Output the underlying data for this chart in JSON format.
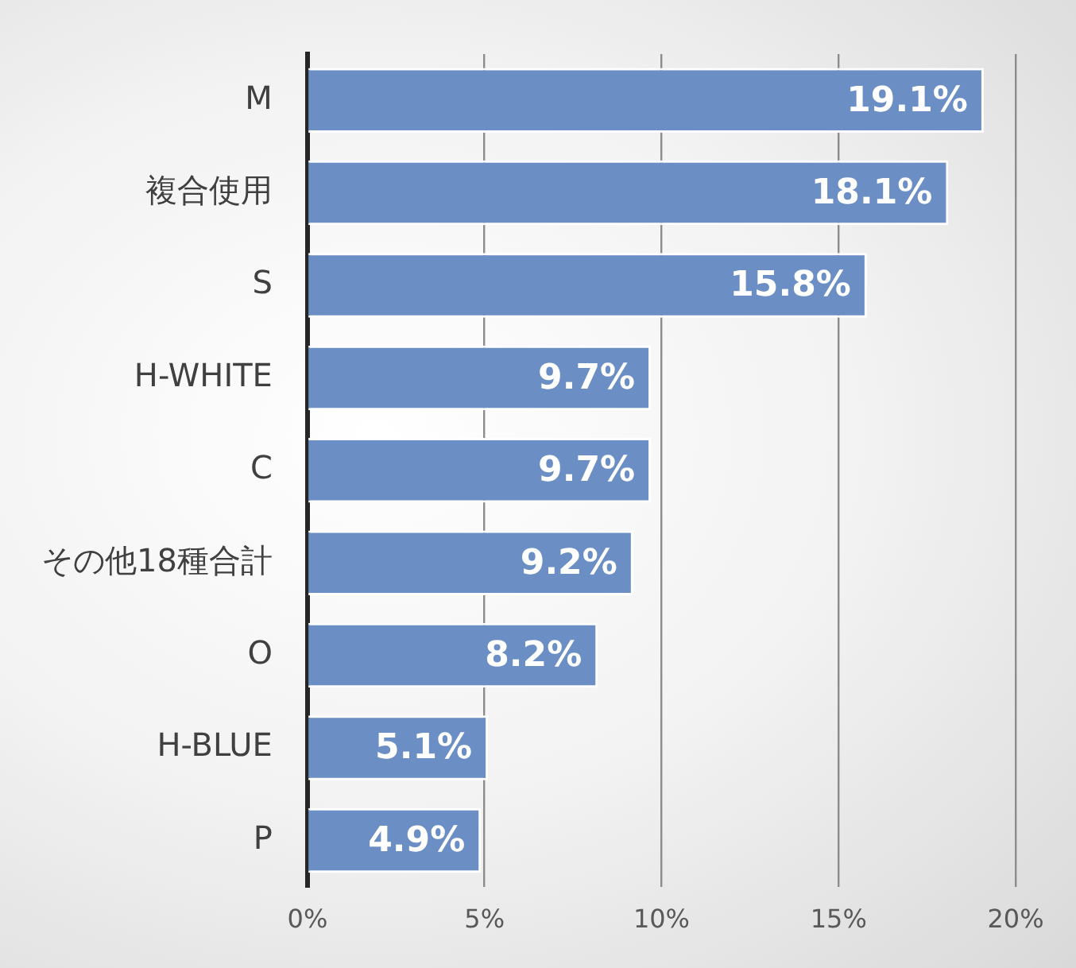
{
  "chart_data": {
    "type": "bar",
    "orientation": "horizontal",
    "categories": [
      "M",
      "複合使用",
      "S",
      "H-WHITE",
      "C",
      "その他18種合計",
      "O",
      "H-BLUE",
      "P"
    ],
    "values": [
      19.1,
      18.1,
      15.8,
      9.7,
      9.7,
      9.2,
      8.2,
      5.1,
      4.9
    ],
    "value_labels": [
      "19.1%",
      "18.1%",
      "15.8%",
      "9.7%",
      "9.7%",
      "9.2%",
      "8.2%",
      "5.1%",
      "4.9%"
    ],
    "color": "#6b8fc5",
    "xlim": [
      0,
      20
    ],
    "xticks": [
      {
        "value": 0,
        "label": "0%"
      },
      {
        "value": 5,
        "label": "5%"
      },
      {
        "value": 10,
        "label": "10%"
      },
      {
        "value": 15,
        "label": "15%"
      },
      {
        "value": 20,
        "label": "20%"
      }
    ],
    "grid": "x",
    "legend": false
  }
}
